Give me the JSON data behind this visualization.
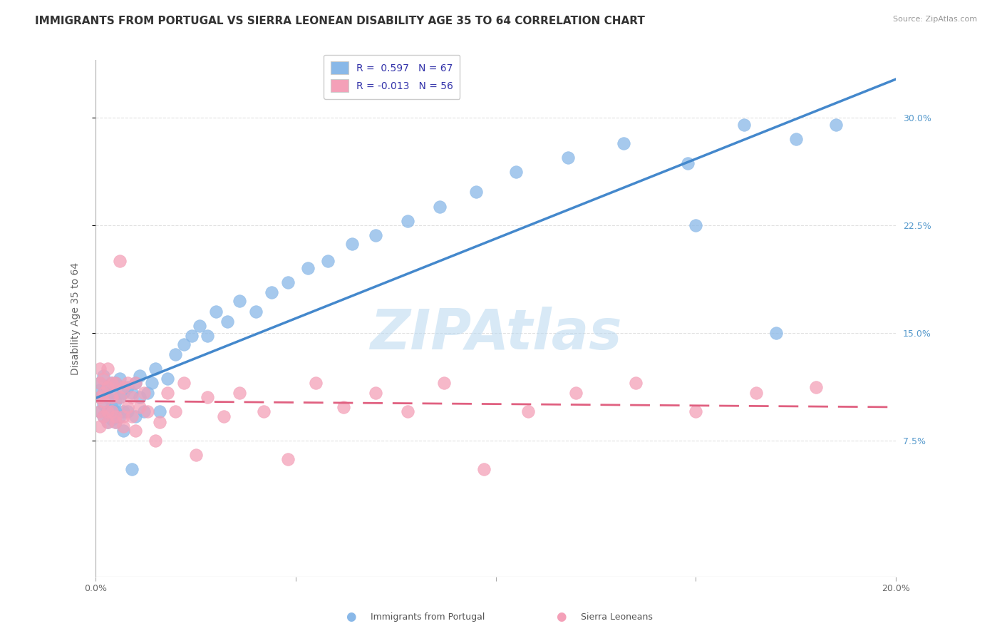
{
  "title": "IMMIGRANTS FROM PORTUGAL VS SIERRA LEONEAN DISABILITY AGE 35 TO 64 CORRELATION CHART",
  "source": "Source: ZipAtlas.com",
  "ylabel": "Disability Age 35 to 64",
  "xlim": [
    0.0,
    0.2
  ],
  "ylim": [
    -0.02,
    0.34
  ],
  "xticks": [
    0.0,
    0.05,
    0.1,
    0.15,
    0.2
  ],
  "xtick_labels": [
    "0.0%",
    "",
    "",
    "",
    "20.0%"
  ],
  "ytick_labels_right": [
    "7.5%",
    "15.0%",
    "22.5%",
    "30.0%"
  ],
  "yticks_right": [
    0.075,
    0.15,
    0.225,
    0.3
  ],
  "legend_entries": [
    {
      "label": "R =  0.597   N = 67",
      "color": "#a8c8f0"
    },
    {
      "label": "R = -0.013   N = 56",
      "color": "#f9b8c8"
    }
  ],
  "legend_label1": "Immigrants from Portugal",
  "legend_label2": "Sierra Leoneans",
  "portugal_color": "#89b8e8",
  "sierraleone_color": "#f4a0b8",
  "line_portugal_color": "#4488cc",
  "line_sierraleone_color": "#e06080",
  "watermark": "ZIPAtlas",
  "watermark_color": "#b8d8f0",
  "background_color": "#ffffff",
  "grid_color": "#e0e0e0",
  "title_fontsize": 11,
  "axis_label_fontsize": 10,
  "tick_fontsize": 9,
  "portugal_scatter": {
    "x": [
      0.001,
      0.001,
      0.001,
      0.001,
      0.002,
      0.002,
      0.002,
      0.002,
      0.003,
      0.003,
      0.003,
      0.003,
      0.004,
      0.004,
      0.004,
      0.004,
      0.005,
      0.005,
      0.005,
      0.005,
      0.006,
      0.006,
      0.006,
      0.007,
      0.007,
      0.007,
      0.008,
      0.008,
      0.009,
      0.009,
      0.01,
      0.01,
      0.011,
      0.011,
      0.012,
      0.013,
      0.014,
      0.015,
      0.016,
      0.018,
      0.02,
      0.022,
      0.024,
      0.026,
      0.028,
      0.03,
      0.033,
      0.036,
      0.04,
      0.044,
      0.048,
      0.053,
      0.058,
      0.064,
      0.07,
      0.078,
      0.086,
      0.095,
      0.105,
      0.118,
      0.132,
      0.148,
      0.162,
      0.175,
      0.15,
      0.185,
      0.17
    ],
    "y": [
      0.105,
      0.115,
      0.095,
      0.11,
      0.1,
      0.12,
      0.092,
      0.108,
      0.095,
      0.112,
      0.088,
      0.105,
      0.098,
      0.115,
      0.09,
      0.108,
      0.102,
      0.095,
      0.115,
      0.088,
      0.105,
      0.092,
      0.118,
      0.095,
      0.108,
      0.082,
      0.112,
      0.095,
      0.055,
      0.108,
      0.115,
      0.092,
      0.105,
      0.12,
      0.095,
      0.108,
      0.115,
      0.125,
      0.095,
      0.118,
      0.135,
      0.142,
      0.148,
      0.155,
      0.148,
      0.165,
      0.158,
      0.172,
      0.165,
      0.178,
      0.185,
      0.195,
      0.2,
      0.212,
      0.218,
      0.228,
      0.238,
      0.248,
      0.262,
      0.272,
      0.282,
      0.268,
      0.295,
      0.285,
      0.225,
      0.295,
      0.15
    ]
  },
  "sierraleone_scatter": {
    "x": [
      0.001,
      0.001,
      0.001,
      0.001,
      0.001,
      0.002,
      0.002,
      0.002,
      0.002,
      0.003,
      0.003,
      0.003,
      0.003,
      0.004,
      0.004,
      0.004,
      0.005,
      0.005,
      0.005,
      0.006,
      0.006,
      0.007,
      0.007,
      0.007,
      0.008,
      0.008,
      0.009,
      0.009,
      0.01,
      0.01,
      0.011,
      0.012,
      0.013,
      0.015,
      0.016,
      0.018,
      0.02,
      0.022,
      0.025,
      0.028,
      0.032,
      0.036,
      0.042,
      0.048,
      0.055,
      0.062,
      0.07,
      0.078,
      0.087,
      0.097,
      0.108,
      0.12,
      0.135,
      0.15,
      0.165,
      0.18
    ],
    "y": [
      0.115,
      0.095,
      0.105,
      0.085,
      0.125,
      0.108,
      0.092,
      0.118,
      0.102,
      0.095,
      0.112,
      0.125,
      0.088,
      0.115,
      0.095,
      0.105,
      0.088,
      0.115,
      0.092,
      0.2,
      0.105,
      0.092,
      0.112,
      0.085,
      0.098,
      0.115,
      0.092,
      0.105,
      0.082,
      0.115,
      0.098,
      0.108,
      0.095,
      0.075,
      0.088,
      0.108,
      0.095,
      0.115,
      0.065,
      0.105,
      0.092,
      0.108,
      0.095,
      0.062,
      0.115,
      0.098,
      0.108,
      0.095,
      0.115,
      0.055,
      0.095,
      0.108,
      0.115,
      0.095,
      0.108,
      0.112
    ]
  }
}
